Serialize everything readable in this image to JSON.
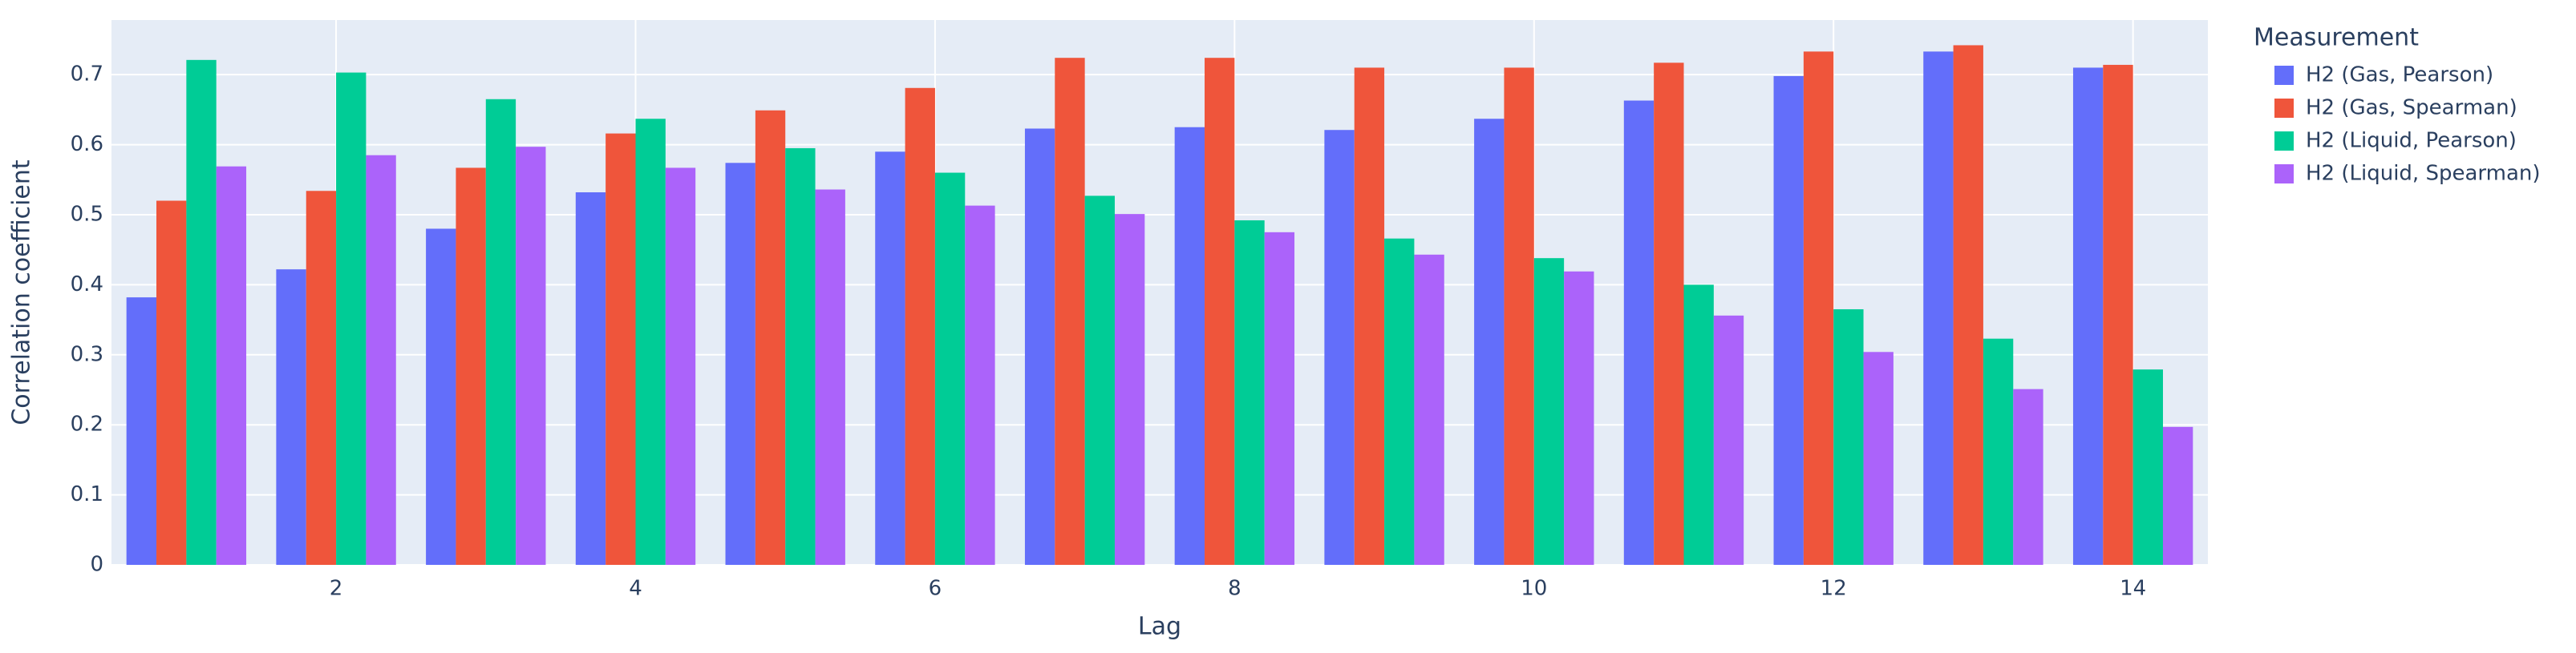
{
  "chart_data": {
    "type": "bar",
    "x_label": "Lag",
    "y_label": "Correlation coefficient",
    "legend_title": "Measurement",
    "legend_position": "right",
    "x": [
      1,
      2,
      3,
      4,
      5,
      6,
      7,
      8,
      9,
      10,
      11,
      12,
      13,
      14
    ],
    "xlim": [
      0.5,
      14.5
    ],
    "xticks": [
      2,
      4,
      6,
      8,
      10,
      12,
      14
    ],
    "ylim": [
      0,
      0.778
    ],
    "yticks": [
      0,
      0.1,
      0.2,
      0.3,
      0.4,
      0.5,
      0.6,
      0.7
    ],
    "grid": true,
    "series": [
      {
        "name": "H2 (Gas, Pearson)",
        "color": "#636efa",
        "values": [
          0.382,
          0.422,
          0.48,
          0.532,
          0.574,
          0.59,
          0.623,
          0.625,
          0.621,
          0.637,
          0.663,
          0.698,
          0.733,
          0.71
        ]
      },
      {
        "name": "H2 (Gas, Spearman)",
        "color": "#ef553b",
        "values": [
          0.52,
          0.534,
          0.567,
          0.616,
          0.649,
          0.681,
          0.724,
          0.724,
          0.71,
          0.71,
          0.717,
          0.733,
          0.742,
          0.714
        ]
      },
      {
        "name": "H2 (Liquid, Pearson)",
        "color": "#00cc96",
        "values": [
          0.721,
          0.703,
          0.665,
          0.637,
          0.595,
          0.56,
          0.527,
          0.492,
          0.466,
          0.438,
          0.4,
          0.365,
          0.323,
          0.279
        ]
      },
      {
        "name": "H2 (Liquid, Spearman)",
        "color": "#ab63fa",
        "values": [
          0.569,
          0.585,
          0.597,
          0.567,
          0.536,
          0.513,
          0.501,
          0.475,
          0.443,
          0.419,
          0.356,
          0.304,
          0.251,
          0.197
        ]
      }
    ]
  }
}
